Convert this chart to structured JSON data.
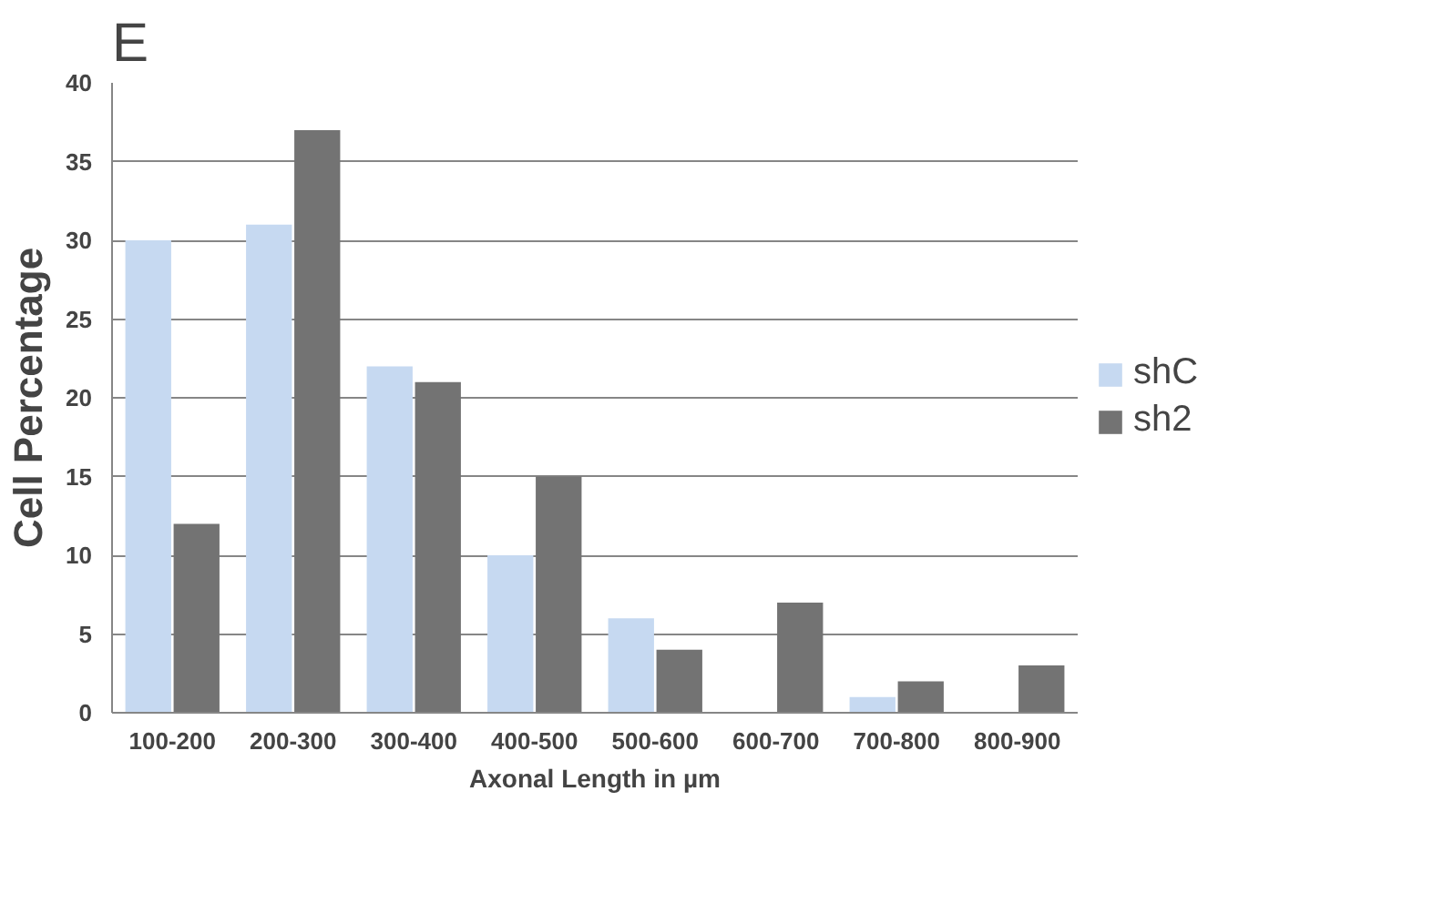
{
  "chart_data": {
    "type": "bar",
    "annotations": [
      "E"
    ],
    "xlabel": "Axonal Length in µm",
    "ylabel": "Cell Percentage",
    "categories": [
      "100-200",
      "200-300",
      "300-400",
      "400-500",
      "500-600",
      "600-700",
      "700-800",
      "800-900"
    ],
    "series": [
      {
        "name": "shC",
        "color": "#c6d9f1",
        "values": [
          30,
          31,
          22,
          10,
          6,
          0,
          1,
          0
        ]
      },
      {
        "name": "sh2",
        "color": "#737373",
        "values": [
          12,
          37,
          21,
          15,
          4,
          7,
          2,
          3
        ]
      }
    ],
    "ylim": [
      0,
      40
    ],
    "yticks": [
      0,
      5,
      10,
      15,
      20,
      25,
      30,
      35,
      40
    ],
    "grid": "y",
    "legend": "right"
  }
}
